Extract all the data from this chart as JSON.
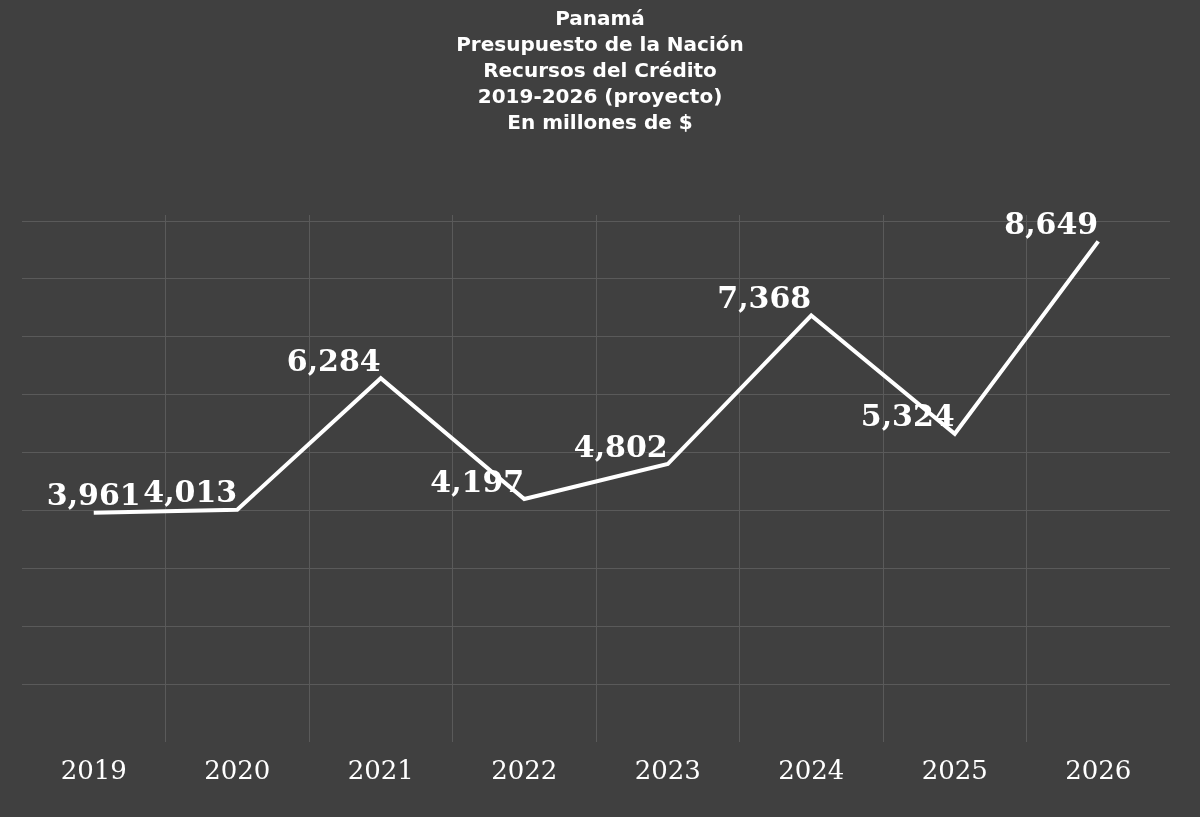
{
  "chart_data": {
    "type": "line",
    "title": "Panamá\nPresupuesto de la Nación\nRecursos del Crédito\n2019-2026 (proyecto)\nEn millones de $",
    "categories": [
      "2019",
      "2020",
      "2021",
      "2022",
      "2023",
      "2024",
      "2025",
      "2026"
    ],
    "series": [
      {
        "color": "#ffffff",
        "values": [
          3961,
          4013,
          6284,
          4197,
          4802,
          7368,
          5324,
          8649
        ],
        "value_labels": [
          "3,961",
          "4,013",
          "6,284",
          "4,197",
          "4,802",
          "7,368",
          "5,324",
          "8,649"
        ]
      }
    ],
    "tick_labels": "x",
    "grid": true,
    "marker": "none",
    "line_style": "solid"
  }
}
